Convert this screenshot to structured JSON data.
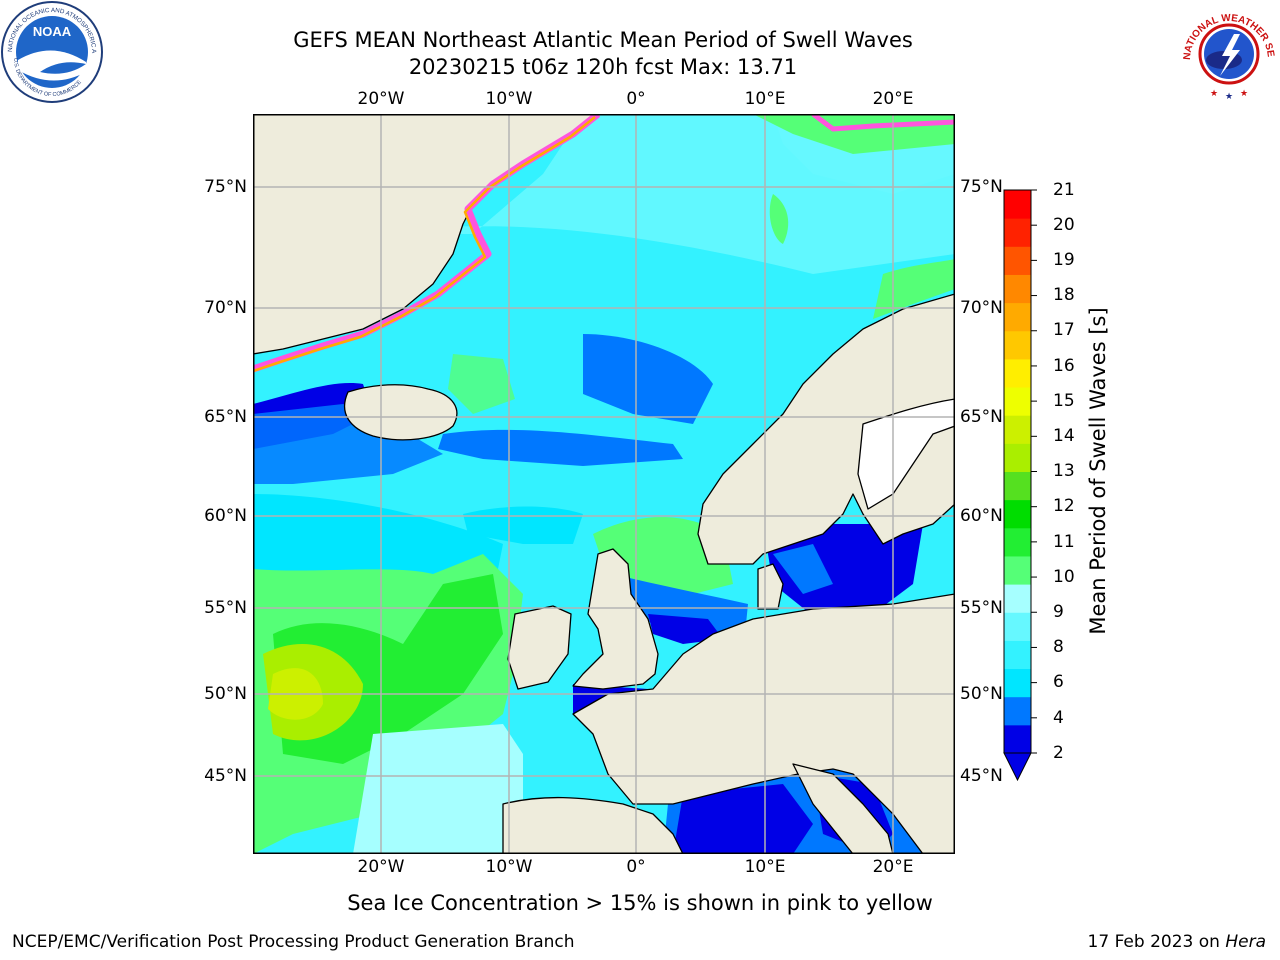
{
  "title": {
    "line1": "GEFS MEAN Northeast Atlantic Mean Period of Swell Waves",
    "line2": "20230215 t06z 120h fcst   Max: 13.71"
  },
  "map": {
    "lon_labels": [
      "20°W",
      "10°W",
      "0°",
      "10°E",
      "20°E"
    ],
    "lat_labels": [
      "75°N",
      "70°N",
      "65°N",
      "60°N",
      "55°N",
      "50°N",
      "45°N"
    ],
    "colors": {
      "land": "#eeecdc",
      "grid": "#b3b3b3",
      "coast": "#000000",
      "ice_edge": "#ff55dd"
    }
  },
  "colorbar": {
    "label": "Mean Period of Swell Waves [s]",
    "ticks": [
      "21",
      "20",
      "19",
      "18",
      "17",
      "16",
      "15",
      "14",
      "13",
      "12",
      "11",
      "10",
      "9",
      "8",
      "6",
      "4",
      "2"
    ],
    "colors": [
      "#0000e6",
      "#0078ff",
      "#00e6ff",
      "#33f2ff",
      "#66f8ff",
      "#a6ffff",
      "#55ff77",
      "#22ee33",
      "#00dd00",
      "#55e020",
      "#aaee00",
      "#ccf000",
      "#eeff00",
      "#ffee00",
      "#ffc800",
      "#ffaa00",
      "#ff8800",
      "#ff5500",
      "#ff2200",
      "#ff0000"
    ]
  },
  "footnote": "Sea Ice Concentration > 15% is shown in pink to yellow",
  "credit": "NCEP/EMC/Verification Post Processing Product Generation Branch",
  "date": {
    "text": "17 Feb 2023 on",
    "platform": "Hera"
  },
  "logos": {
    "noaa": {
      "name": "NOAA",
      "ring_text": "NATIONAL OCEANIC AND ATMOSPHERIC ADMINISTRATION",
      "bottom_text": "U.S. DEPARTMENT OF COMMERCE"
    },
    "nws": {
      "ring_text": "NATIONAL WEATHER SERVICE"
    }
  }
}
